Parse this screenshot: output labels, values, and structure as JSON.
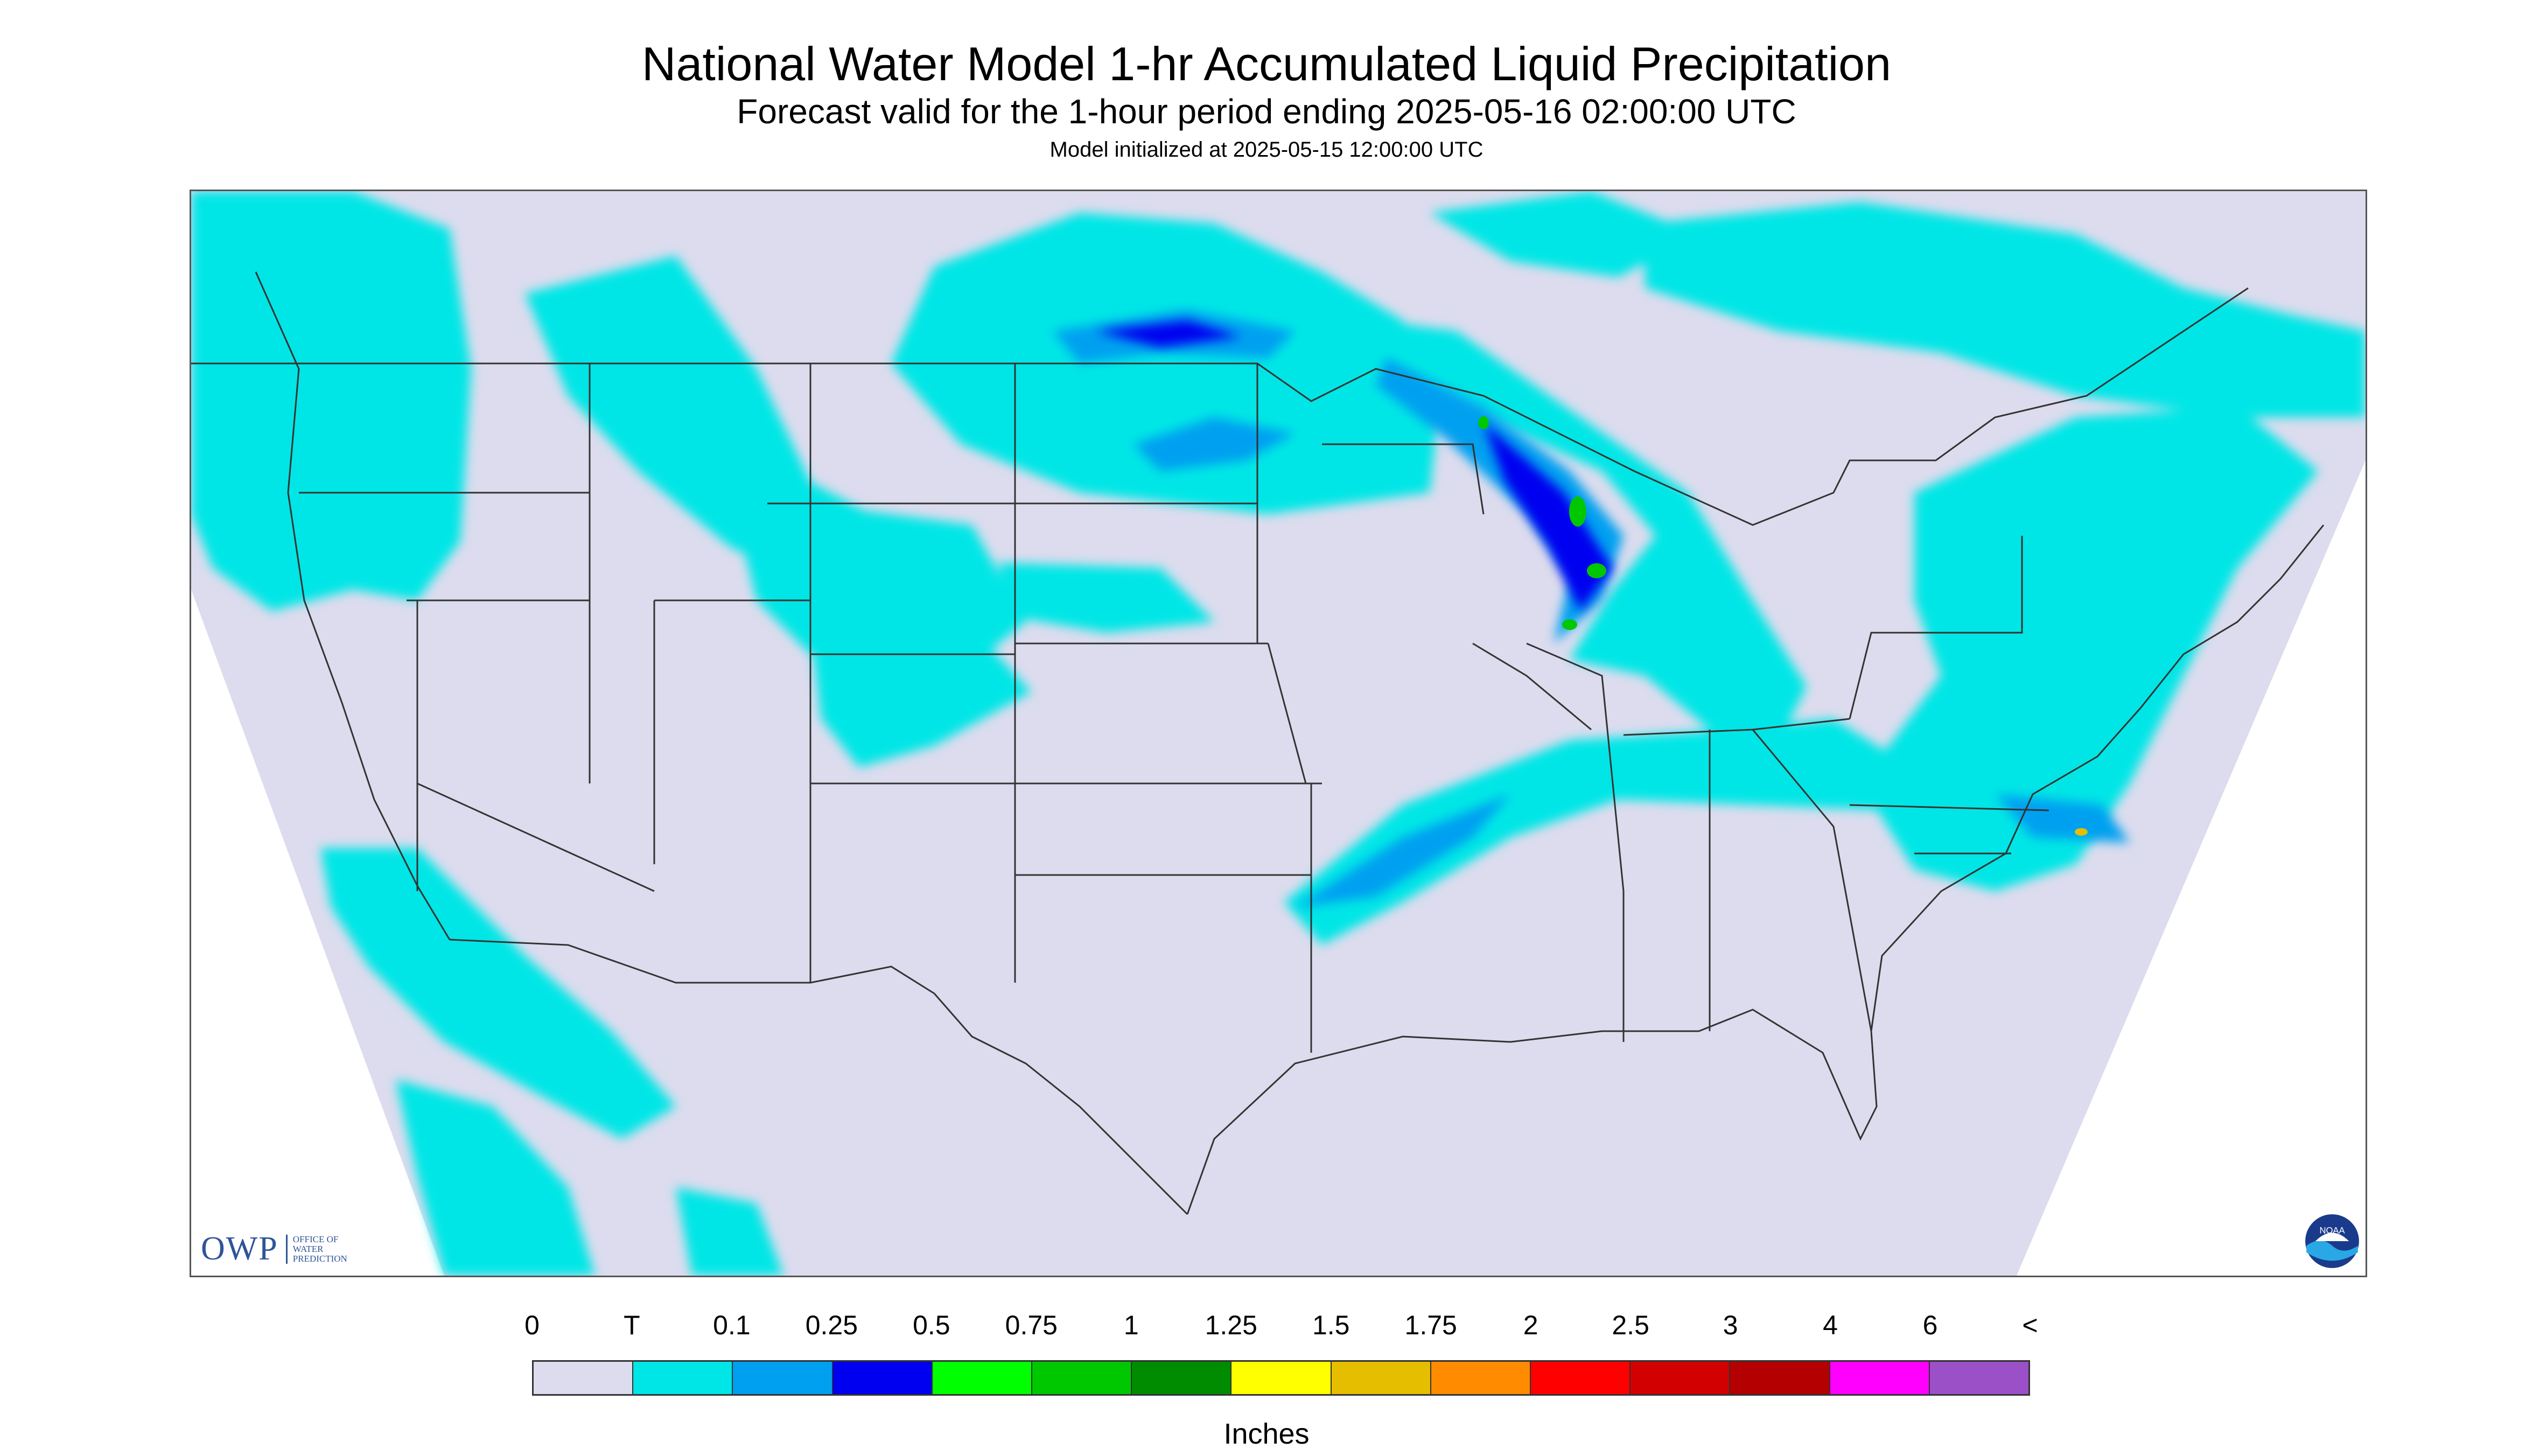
{
  "header": {
    "title": "National Water Model 1-hr Accumulated Liquid Precipitation",
    "subtitle": "Forecast valid for the 1-hour period ending 2025-05-16 02:00:00 UTC",
    "init_note": "Model initialized at 2025-05-15 12:00:00 UTC"
  },
  "logos": {
    "owp_word": "OWP",
    "owp_lines": [
      "OFFICE OF",
      "WATER",
      "PREDICTION"
    ],
    "noaa_text": "NOAA"
  },
  "legend": {
    "units": "Inches",
    "tick_labels": [
      "0",
      "T",
      "0.1",
      "0.25",
      "0.5",
      "0.75",
      "1",
      "1.25",
      "1.5",
      "1.75",
      "2",
      "2.5",
      "3",
      "4",
      "6",
      "<"
    ],
    "colors": [
      "#dcdcee",
      "#00e6e6",
      "#00a0f0",
      "#0000f0",
      "#00ff00",
      "#00c800",
      "#008c00",
      "#ffff00",
      "#e6be00",
      "#ff8c00",
      "#ff0000",
      "#d20000",
      "#b40000",
      "#ff00ff",
      "#9b50c8"
    ]
  },
  "map": {
    "background_color": "#dcdcee",
    "nodata_color": "#ffffff",
    "boundary_color": "#333333",
    "precip_categories": [
      "T",
      "0.1",
      "0.25",
      "0.5",
      "0.75",
      "1"
    ]
  }
}
